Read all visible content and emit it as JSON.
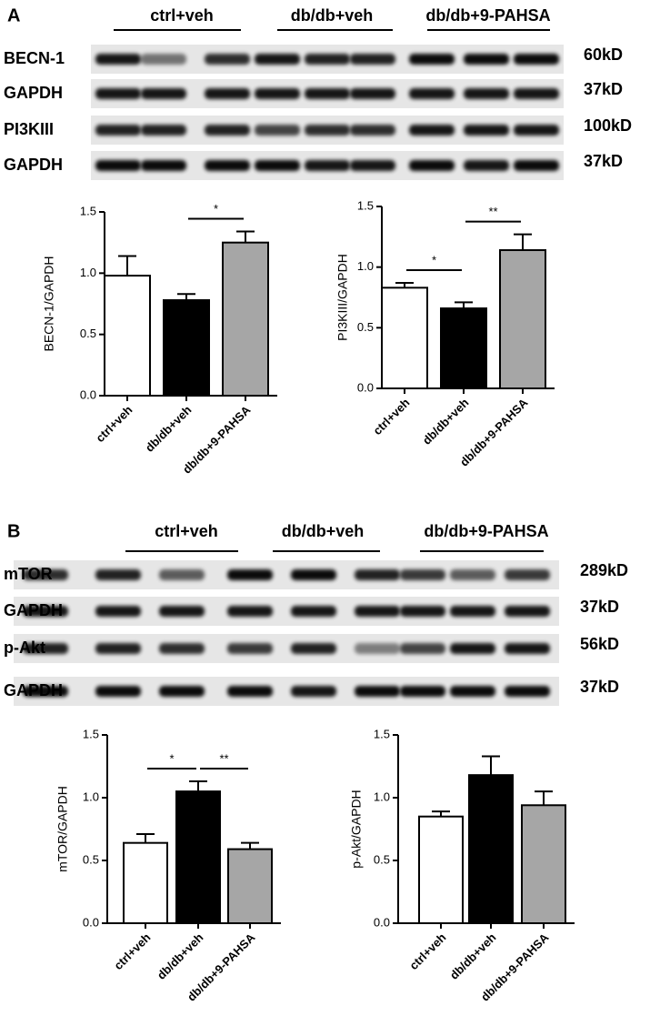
{
  "panels": [
    {
      "label": "A",
      "groups": [
        "ctrl+veh",
        "db/db+veh",
        "db/db+9-PAHSA"
      ],
      "rows": [
        {
          "name": "BECN-1",
          "size": "60kD"
        },
        {
          "name": "GAPDH",
          "size": "37kD"
        },
        {
          "name": "PI3KIII",
          "size": "100kD"
        },
        {
          "name": "GAPDH",
          "size": "37kD"
        }
      ]
    },
    {
      "label": "B",
      "groups": [
        "ctrl+veh",
        "db/db+veh",
        "db/db+9-PAHSA"
      ],
      "rows": [
        {
          "name": "mTOR",
          "size": "289kD"
        },
        {
          "name": "GAPDH",
          "size": "37kD"
        },
        {
          "name": "p-Akt",
          "size": "56kD"
        },
        {
          "name": "GAPDH",
          "size": "37kD"
        }
      ]
    }
  ],
  "chart_data": [
    {
      "type": "bar",
      "ylabel": "BECN-1/GAPDH",
      "categories": [
        "ctrl+veh",
        "db/db+veh",
        "db/db+9-PAHSA"
      ],
      "values": [
        0.98,
        0.78,
        1.25
      ],
      "errors": [
        0.16,
        0.05,
        0.09
      ],
      "colors": [
        "#ffffff",
        "#000000",
        "#a6a6a6"
      ],
      "ylim": [
        0,
        1.5
      ],
      "yticks": [
        {
          "value": 0,
          "label": "0.0"
        },
        {
          "value": 0.5,
          "label": "0.5"
        },
        {
          "value": 1,
          "label": "1.0"
        },
        {
          "value": 1.5,
          "label": "1.5"
        }
      ],
      "significance": [
        {
          "between": [
            1,
            2
          ],
          "label": "*"
        }
      ]
    },
    {
      "type": "bar",
      "ylabel": "PI3KIII/GAPDH",
      "categories": [
        "ctrl+veh",
        "db/db+veh",
        "db/db+9-PAHSA"
      ],
      "values": [
        0.83,
        0.66,
        1.14
      ],
      "errors": [
        0.04,
        0.05,
        0.13
      ],
      "colors": [
        "#ffffff",
        "#000000",
        "#a6a6a6"
      ],
      "ylim": [
        0,
        1.5
      ],
      "yticks": [
        {
          "value": 0,
          "label": "0.0"
        },
        {
          "value": 0.5,
          "label": "0.5"
        },
        {
          "value": 1,
          "label": "1.0"
        },
        {
          "value": 1.5,
          "label": "1.5"
        }
      ],
      "significance": [
        {
          "between": [
            0,
            1
          ],
          "label": "*"
        },
        {
          "between": [
            1,
            2
          ],
          "label": "**"
        }
      ]
    },
    {
      "type": "bar",
      "ylabel": "mTOR/GAPDH",
      "categories": [
        "ctrl+veh",
        "db/db+veh",
        "db/db+9-PAHSA"
      ],
      "values": [
        0.64,
        1.05,
        0.59
      ],
      "errors": [
        0.07,
        0.08,
        0.05
      ],
      "colors": [
        "#ffffff",
        "#000000",
        "#a6a6a6"
      ],
      "ylim": [
        0,
        1.5
      ],
      "yticks": [
        {
          "value": 0,
          "label": "0.0"
        },
        {
          "value": 0.5,
          "label": "0.5"
        },
        {
          "value": 1,
          "label": "1.0"
        },
        {
          "value": 1.5,
          "label": "1.5"
        }
      ],
      "significance": [
        {
          "between": [
            0,
            1
          ],
          "label": "*"
        },
        {
          "between": [
            1,
            2
          ],
          "label": "**"
        }
      ]
    },
    {
      "type": "bar",
      "ylabel": "p-Akt/GAPDH",
      "categories": [
        "ctrl+veh",
        "db/db+veh",
        "db/db+9-PAHSA"
      ],
      "values": [
        0.85,
        1.18,
        0.94
      ],
      "errors": [
        0.04,
        0.15,
        0.11
      ],
      "colors": [
        "#ffffff",
        "#000000",
        "#a6a6a6"
      ],
      "ylim": [
        0,
        1.5
      ],
      "yticks": [
        {
          "value": 0,
          "label": "0.0"
        },
        {
          "value": 0.5,
          "label": "0.5"
        },
        {
          "value": 1,
          "label": "1.0"
        },
        {
          "value": 1.5,
          "label": "1.5"
        }
      ],
      "significance": []
    }
  ]
}
